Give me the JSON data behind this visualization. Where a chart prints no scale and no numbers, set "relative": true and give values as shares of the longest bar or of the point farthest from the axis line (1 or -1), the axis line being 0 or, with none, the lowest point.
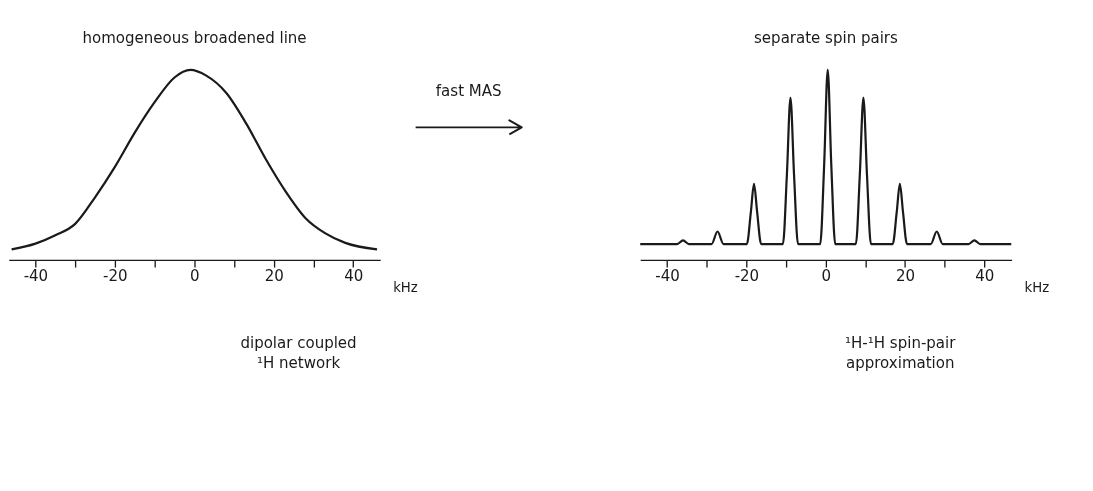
{
  "chart_data": [
    {
      "type": "line",
      "title": "homogeneous broadened line",
      "xlabel": "kHz",
      "relative": true,
      "grid": false,
      "marker": "none",
      "line_style": "solid",
      "xlim": [
        -46.7,
        46.8
      ],
      "xticks": [
        -40,
        {
          "value": -30,
          "label": null
        },
        -20,
        {
          "value": -10,
          "label": null
        },
        0,
        {
          "value": 10,
          "label": null
        },
        20,
        {
          "value": 30,
          "label": null
        },
        40
      ],
      "series": [
        {
          "color": "#1a1a1a",
          "x": [
            -46,
            -40,
            -35,
            -30,
            -25,
            -20,
            -15,
            -10,
            -5,
            -1,
            3,
            8,
            13,
            18,
            23,
            28,
            33,
            38,
            46
          ],
          "values": [
            0.056,
            0.086,
            0.13,
            0.19,
            0.33,
            0.49,
            0.67,
            0.83,
            0.96,
            1,
            0.97,
            0.88,
            0.72,
            0.53,
            0.36,
            0.22,
            0.14,
            0.09,
            0.056
          ]
        }
      ],
      "annotations": [
        "fast MAS",
        "dipolar coupled ¹H network"
      ]
    },
    {
      "type": "line",
      "title": "separate spin pairs",
      "xlabel": "kHz",
      "relative": true,
      "grid": false,
      "marker": "none",
      "line_style": "solid",
      "xlim": [
        -46.8,
        46.9
      ],
      "xticks": [
        -40,
        {
          "value": -30,
          "label": null
        },
        -20,
        {
          "value": -10,
          "label": null
        },
        0,
        {
          "value": 10,
          "label": null
        },
        20,
        {
          "value": 30,
          "label": null
        },
        40
      ],
      "series": [
        {
          "color": "#1a1a1a",
          "x": [
            -46.8,
            -37.5,
            -36,
            -34.5,
            -28.8,
            -27.3,
            -25.8,
            -19.9,
            -18.9,
            -18.1,
            -17.3,
            -16.3,
            -10.8,
            -9.8,
            -8.9,
            -8.0,
            -7.0,
            -1.4,
            -0.4,
            0.5,
            1.4,
            2.4,
            7.6,
            8.6,
            9.5,
            10.4,
            11.4,
            16.9,
            17.9,
            18.7,
            19.5,
            20.5,
            26.5,
            28,
            29.5,
            36,
            37.5,
            39,
            46.8
          ],
          "values": [
            0.084,
            0.084,
            0.103,
            0.084,
            0.084,
            0.15,
            0.084,
            0.084,
            0.25,
            0.4,
            0.25,
            0.084,
            0.084,
            0.45,
            0.854,
            0.45,
            0.084,
            0.084,
            0.5,
            1,
            0.5,
            0.084,
            0.084,
            0.45,
            0.854,
            0.45,
            0.084,
            0.084,
            0.25,
            0.4,
            0.25,
            0.084,
            0.084,
            0.15,
            0.084,
            0.084,
            0.103,
            0.084,
            0.084
          ]
        }
      ],
      "annotations": [
        "¹H-¹H spin-pair approximation"
      ]
    }
  ]
}
